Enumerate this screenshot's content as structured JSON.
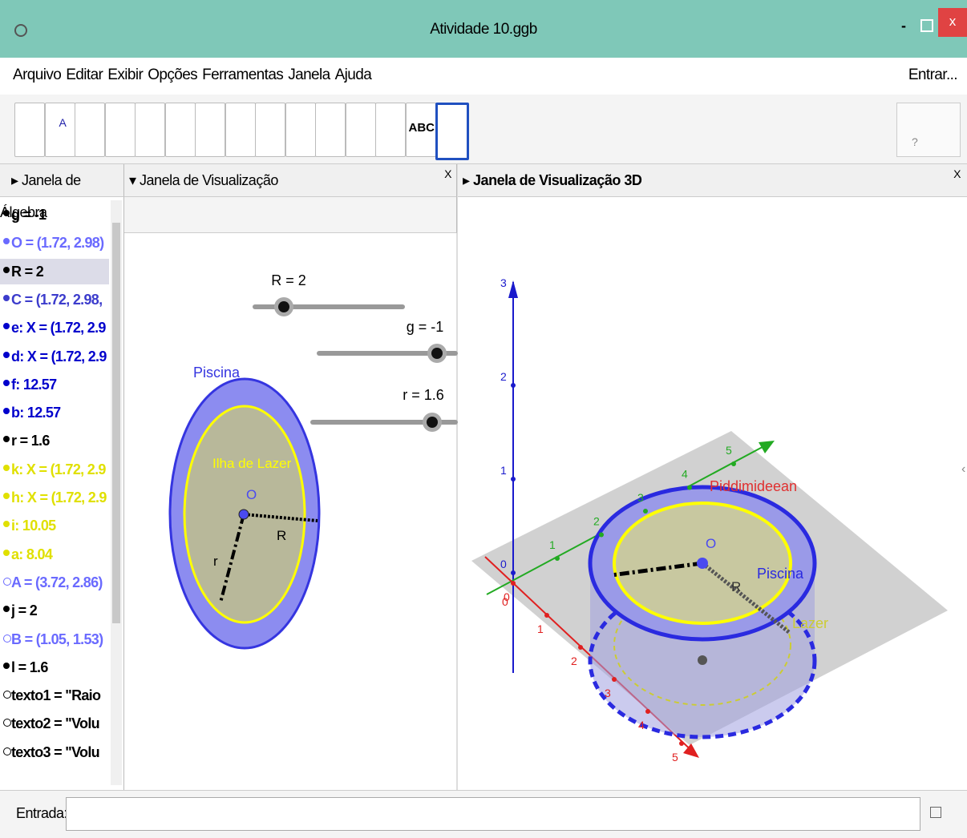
{
  "window": {
    "title": "Atividade 10.ggb",
    "minimize": "-",
    "close": "x"
  },
  "menu": {
    "items": [
      "Arquivo",
      "Editar",
      "Exibir",
      "Opções",
      "Ferramentas",
      "Janela",
      "Ajuda"
    ],
    "login": "Entrar..."
  },
  "toolbar": {
    "text_tool": "ABC",
    "point_tool": "A",
    "help": "?"
  },
  "panels": {
    "algebra": "Janela de Álgebra",
    "graphics": "Janela de Visualização",
    "graphics3d": "Janela de Visualização 3D",
    "close": "X"
  },
  "algebra": {
    "items": [
      {
        "text": "g = -1",
        "color": "#000000",
        "hollow": false
      },
      {
        "text": "O = (1.72, 2.98)",
        "color": "#6a6aff",
        "hollow": false
      },
      {
        "text": "R = 2",
        "color": "#000000",
        "hollow": false,
        "selected": true
      },
      {
        "text": "C = (1.72, 2.98,",
        "color": "#3c3ccc",
        "hollow": false
      },
      {
        "text": "e: X = (1.72, 2.9",
        "color": "#0000cc",
        "hollow": false
      },
      {
        "text": "d: X = (1.72, 2.9",
        "color": "#0000cc",
        "hollow": false
      },
      {
        "text": "f: 12.57",
        "color": "#0000cc",
        "hollow": false
      },
      {
        "text": "b: 12.57",
        "color": "#0000cc",
        "hollow": false
      },
      {
        "text": "r = 1.6",
        "color": "#000000",
        "hollow": false
      },
      {
        "text": "k: X = (1.72, 2.9",
        "color": "#e0e000",
        "hollow": false
      },
      {
        "text": "h: X = (1.72, 2.9",
        "color": "#e0e000",
        "hollow": false
      },
      {
        "text": "i: 10.05",
        "color": "#e0e000",
        "hollow": false
      },
      {
        "text": "a: 8.04",
        "color": "#e0e000",
        "hollow": false
      },
      {
        "text": "A = (3.72, 2.86)",
        "color": "#6a6aff",
        "hollow": true
      },
      {
        "text": "j = 2",
        "color": "#000000",
        "hollow": false
      },
      {
        "text": "B = (1.05, 1.53)",
        "color": "#6a6aff",
        "hollow": true
      },
      {
        "text": "l = 1.6",
        "color": "#000000",
        "hollow": false
      },
      {
        "text": "texto1 = \"Raio",
        "color": "#000000",
        "hollow": true
      },
      {
        "text": "texto2 = \"Volu",
        "color": "#000000",
        "hollow": true
      },
      {
        "text": "texto3 = \"Volu",
        "color": "#000000",
        "hollow": true
      }
    ]
  },
  "graphics": {
    "sliders": [
      "R = 2",
      "g = -1",
      "r = 1.6"
    ],
    "outer_label": "Piscina",
    "inner_label": "Ilha de Lazer",
    "center": "O",
    "radius_big": "R",
    "radius_small": "r"
  },
  "graphics3d": {
    "z_labels": [
      0,
      1,
      2,
      3
    ],
    "y_labels": [
      1,
      2,
      3,
      4,
      5
    ],
    "x_labels": [
      0,
      1,
      2,
      3,
      4,
      5
    ],
    "origin": "0",
    "center": "O",
    "radius": "R",
    "pool": "Piscina",
    "leisure": "Lazer",
    "overlap": "Piddimideean"
  },
  "input": {
    "label": "Entrada:"
  }
}
